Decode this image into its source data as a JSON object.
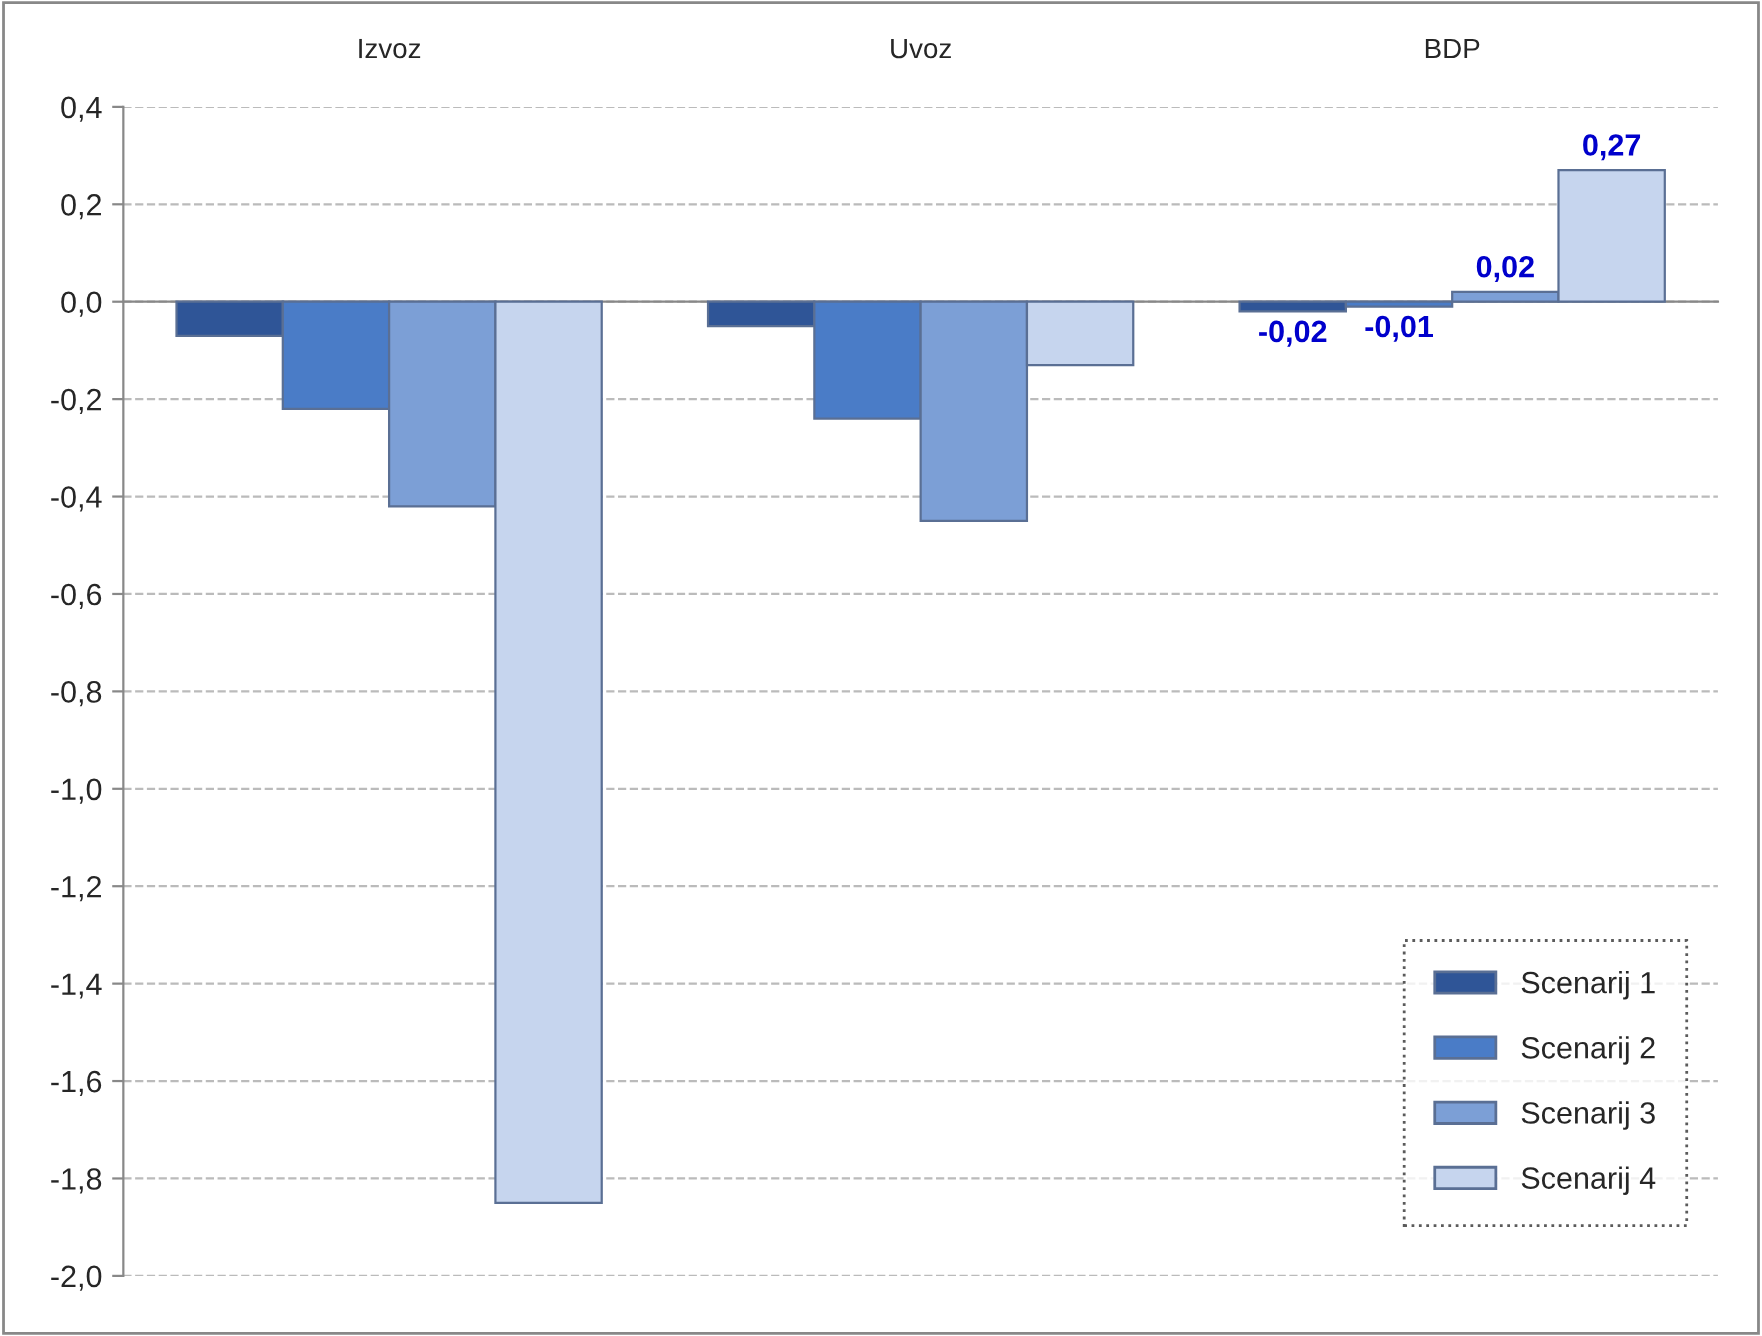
{
  "chart_data": {
    "type": "bar",
    "categories": [
      "Izvoz",
      "Uvoz",
      "BDP"
    ],
    "series": [
      {
        "name": "Scenarij 1",
        "color": "#2f5597",
        "values": [
          -0.07,
          -0.05,
          -0.02
        ],
        "value_labels": [
          null,
          null,
          "-0,02"
        ]
      },
      {
        "name": "Scenarij 2",
        "color": "#4a7cc7",
        "values": [
          -0.22,
          -0.24,
          -0.01
        ],
        "value_labels": [
          null,
          null,
          "-0,01"
        ]
      },
      {
        "name": "Scenarij 3",
        "color": "#7c9fd6",
        "values": [
          -0.42,
          -0.45,
          0.02
        ],
        "value_labels": [
          null,
          null,
          "0,02"
        ]
      },
      {
        "name": "Scenarij 4",
        "color": "#c6d5ee",
        "values": [
          -1.85,
          -0.13,
          0.27
        ],
        "value_labels": [
          null,
          null,
          "0,27"
        ]
      }
    ],
    "ylim": [
      -2.0,
      0.4
    ],
    "yticks": [
      {
        "value": -2.0,
        "label": "-2,0"
      },
      {
        "value": -1.8,
        "label": "-1,8"
      },
      {
        "value": -1.6,
        "label": "-1,6"
      },
      {
        "value": -1.4,
        "label": "-1,4"
      },
      {
        "value": -1.2,
        "label": "-1,2"
      },
      {
        "value": -1.0,
        "label": "-1,0"
      },
      {
        "value": -0.8,
        "label": "-0,8"
      },
      {
        "value": -0.6,
        "label": "-0,6"
      },
      {
        "value": -0.4,
        "label": "-0,4"
      },
      {
        "value": -0.2,
        "label": "-0,2"
      },
      {
        "value": 0.0,
        "label": "0,0"
      },
      {
        "value": 0.2,
        "label": "0,2"
      },
      {
        "value": 0.4,
        "label": "0,4"
      }
    ],
    "grid": "y",
    "legend": "bottom right"
  }
}
